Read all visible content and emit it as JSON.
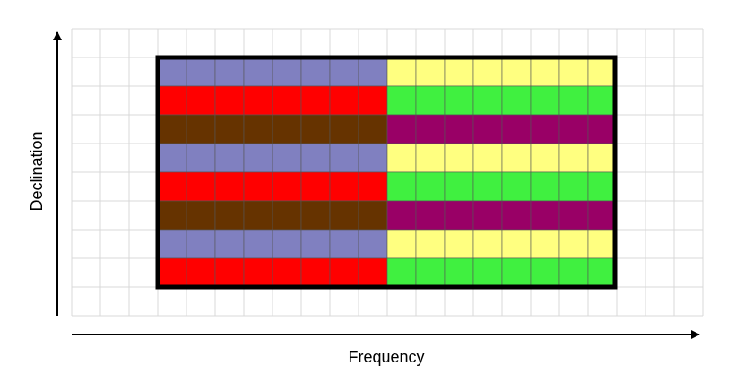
{
  "axes": {
    "x_label": "Frequency",
    "y_label": "Declination"
  },
  "grid": {
    "columns": 22,
    "rows": 10,
    "line_color": "#d9d9d9"
  },
  "block": {
    "col_start": 3,
    "row_start": 1,
    "cols_per_half": 8,
    "border_color": "#000000",
    "cell_line_color": "#555555",
    "left_half_colors": [
      "#8080c0",
      "#ff0000",
      "#663300",
      "#8080c0",
      "#ff0000",
      "#663300",
      "#8080c0",
      "#ff0000"
    ],
    "right_half_colors": [
      "#ffff80",
      "#40f040",
      "#990066",
      "#ffff80",
      "#40f040",
      "#990066",
      "#ffff80",
      "#40f040"
    ]
  }
}
